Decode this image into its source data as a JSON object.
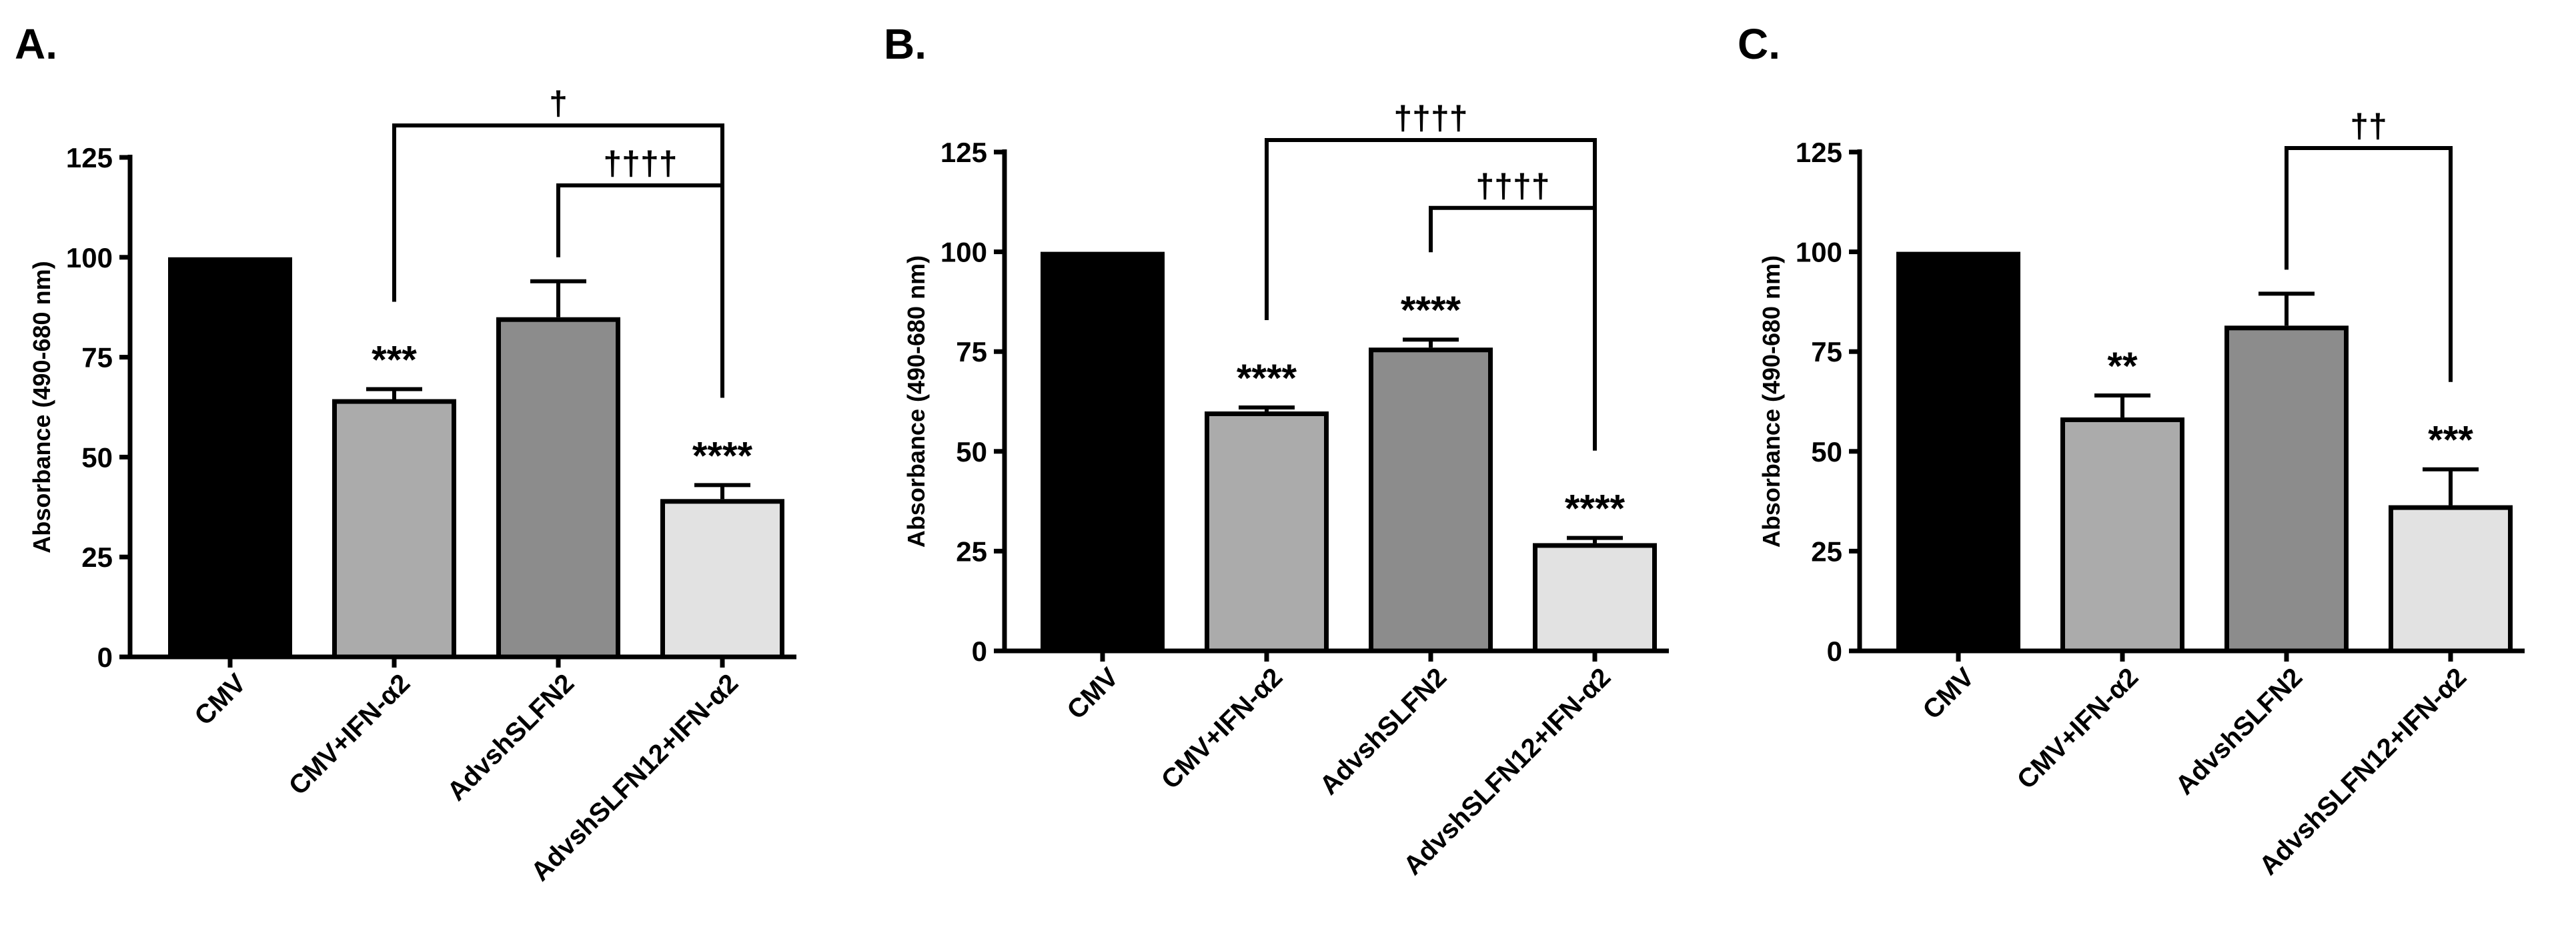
{
  "chart_data": [
    {
      "type": "bar",
      "panel_label": "A.",
      "ylabel": "Absorbance (490-680 nm)",
      "ylim": [
        0,
        125
      ],
      "yticks": [
        "0",
        "25",
        "50",
        "75",
        "100",
        "125"
      ],
      "categories": [
        "CMV",
        "CMV+IFN-α2",
        "AdvshSLFN2",
        "AdvshSLFN12+IFN-α2"
      ],
      "values": [
        100,
        64.5,
        85,
        39.5
      ],
      "errors": [
        0,
        2.5,
        9,
        3.5
      ],
      "colors": [
        "#000000",
        "#ababab",
        "#8c8c8c",
        "#e2e2e2"
      ],
      "stars": [
        "",
        "***",
        "",
        "****"
      ],
      "brackets": [
        {
          "from": 1,
          "to": 3,
          "label": "†",
          "level": 133
        },
        {
          "from": 2,
          "to": 3,
          "label": "††††",
          "level": 118
        }
      ]
    },
    {
      "type": "bar",
      "panel_label": "B.",
      "ylabel": "Absorbance (490-680 nm)",
      "ylim": [
        0,
        125
      ],
      "yticks": [
        "0",
        "25",
        "50",
        "75",
        "100",
        "125"
      ],
      "categories": [
        "CMV",
        "CMV+IFN-α2",
        "AdvshSLFN2",
        "AdvshSLFN12+IFN-α2"
      ],
      "values": [
        100,
        60,
        76,
        27
      ],
      "errors": [
        0,
        1,
        2,
        1.3
      ],
      "colors": [
        "#000000",
        "#ababab",
        "#8c8c8c",
        "#e2e2e2"
      ],
      "stars": [
        "",
        "****",
        "****",
        "****"
      ],
      "brackets": [
        {
          "from": 1,
          "to": 3,
          "label": "††††",
          "level": 128
        },
        {
          "from": 2,
          "to": 3,
          "label": "††††",
          "level": 111
        }
      ]
    },
    {
      "type": "bar",
      "panel_label": "C.",
      "ylabel": "Absorbance (490-680 nm)",
      "ylim": [
        0,
        125
      ],
      "yticks": [
        "0",
        "25",
        "50",
        "75",
        "100",
        "125"
      ],
      "categories": [
        "CMV",
        "CMV+IFN-α2",
        "AdvshSLFN2",
        "AdvshSLFN12+IFN-α2"
      ],
      "values": [
        100,
        58.5,
        81.5,
        36.5
      ],
      "errors": [
        0,
        5.5,
        8,
        9
      ],
      "colors": [
        "#000000",
        "#ababab",
        "#8c8c8c",
        "#e2e2e2"
      ],
      "stars": [
        "",
        "**",
        "",
        "***"
      ],
      "brackets": [
        {
          "from": 2,
          "to": 3,
          "label": "††",
          "level": 126
        }
      ]
    }
  ]
}
